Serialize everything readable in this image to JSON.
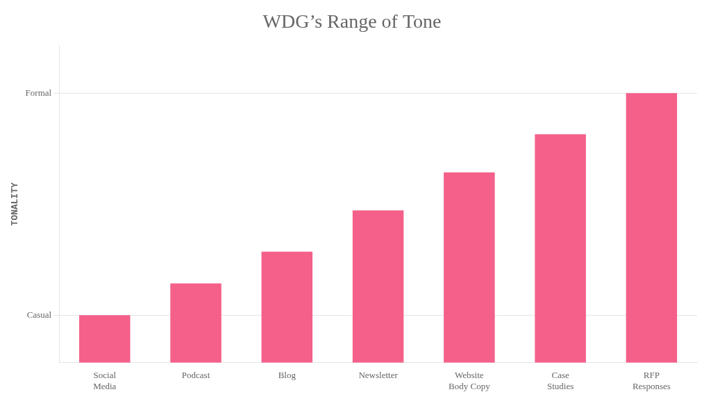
{
  "chart_data": {
    "type": "bar",
    "title": "WDG’s Range of Tone",
    "categories": [
      "Social\nMedia",
      "Podcast",
      "Blog",
      "Newsletter",
      "Website\nBody Copy",
      "Case\nStudies",
      "RFP\nResponses"
    ],
    "values": [
      1.5,
      2.5,
      3.5,
      4.8,
      6.0,
      7.2,
      8.5
    ],
    "color": "#F4608A",
    "ylabel": "TONALITY",
    "ylim": [
      0,
      10
    ],
    "yticks": [
      {
        "value": 1.5,
        "label": "Casual"
      },
      {
        "value": 8.5,
        "label": "Formal"
      }
    ],
    "grid": true
  }
}
